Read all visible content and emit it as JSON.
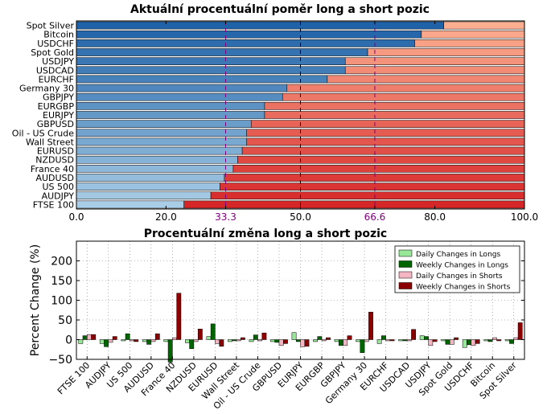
{
  "chart_data": [
    {
      "type": "bar",
      "orientation": "horizontal",
      "stacked": true,
      "title": "Aktuální procentuální poměr long a short pozic",
      "categories": [
        "Spot Silver",
        "Bitcoin",
        "USDCHF",
        "Spot Gold",
        "USDJPY",
        "USDCAD",
        "EURCHF",
        "Germany 30",
        "GBPJPY",
        "EURGBP",
        "EURJPY",
        "GBPUSD",
        "Oil - US Crude",
        "Wall Street",
        "EURUSD",
        "NZDUSD",
        "France 40",
        "AUDUSD",
        "US 500",
        "AUDJPY",
        "FTSE 100"
      ],
      "series": [
        {
          "values": [
            82,
            77,
            75.5,
            65,
            60,
            60,
            56,
            47,
            46,
            42,
            42,
            39,
            38,
            38,
            37,
            36,
            35,
            33,
            32,
            30,
            24
          ]
        }
      ],
      "xlim": [
        0,
        100
      ],
      "xticks": [
        "0.0",
        "20.0",
        "33.3",
        "50.0",
        "66.6",
        "80.0",
        "100.0"
      ],
      "reference_lines": [
        33.3,
        50.0,
        66.6
      ],
      "colors": {
        "long_dark": "#1f62a8",
        "long_light": "#a9cde6",
        "short_light": "#fcae91",
        "short_dark": "#d62728",
        "ref_purple": "#800080"
      }
    },
    {
      "type": "bar",
      "title": "Procentuální změna long a short pozic",
      "ylabel": "Percent Change (%)",
      "ylim": [
        -50,
        250
      ],
      "yticks": [
        "−50",
        "0",
        "50",
        "100",
        "150",
        "200"
      ],
      "categories": [
        "FTSE 100",
        "AUDJPY",
        "US 500",
        "AUDUSD",
        "France 40",
        "NZDUSD",
        "EURUSD",
        "Wall Street",
        "Oil - US Crude",
        "GBPUSD",
        "EURJPY",
        "EURGBP",
        "GBPJPY",
        "Germany 30",
        "EURCHF",
        "USDCAD",
        "USDJPY",
        "Spot Gold",
        "USDCHF",
        "Bitcoin",
        "Spot Silver"
      ],
      "series": [
        {
          "name": "Daily Changes in Longs",
          "color": "#98e698",
          "values": [
            -10,
            -10,
            -3,
            -5,
            -5,
            -8,
            8,
            -5,
            -5,
            -5,
            18,
            -5,
            -5,
            -5,
            -10,
            -3,
            10,
            -3,
            -20,
            -3,
            -3
          ]
        },
        {
          "name": "Weekly Changes in Longs",
          "color": "#006400",
          "values": [
            10,
            -18,
            15,
            -12,
            -57,
            -23,
            40,
            -3,
            12,
            -7,
            -5,
            8,
            -15,
            -33,
            10,
            -3,
            8,
            -12,
            -13,
            -5,
            -10
          ]
        },
        {
          "name": "Daily Changes in Shorts",
          "color": "#f4b6c2",
          "values": [
            13,
            -7,
            -3,
            -5,
            5,
            -5,
            -10,
            -3,
            -3,
            -15,
            -18,
            -3,
            -15,
            -5,
            -3,
            -3,
            -15,
            -12,
            -15,
            5,
            5
          ]
        },
        {
          "name": "Weekly Changes in Shorts",
          "color": "#8b0000",
          "values": [
            13,
            8,
            -5,
            15,
            118,
            27,
            -17,
            5,
            17,
            -10,
            -17,
            5,
            10,
            70,
            -3,
            26,
            -5,
            5,
            -10,
            -3,
            43
          ]
        }
      ]
    }
  ]
}
